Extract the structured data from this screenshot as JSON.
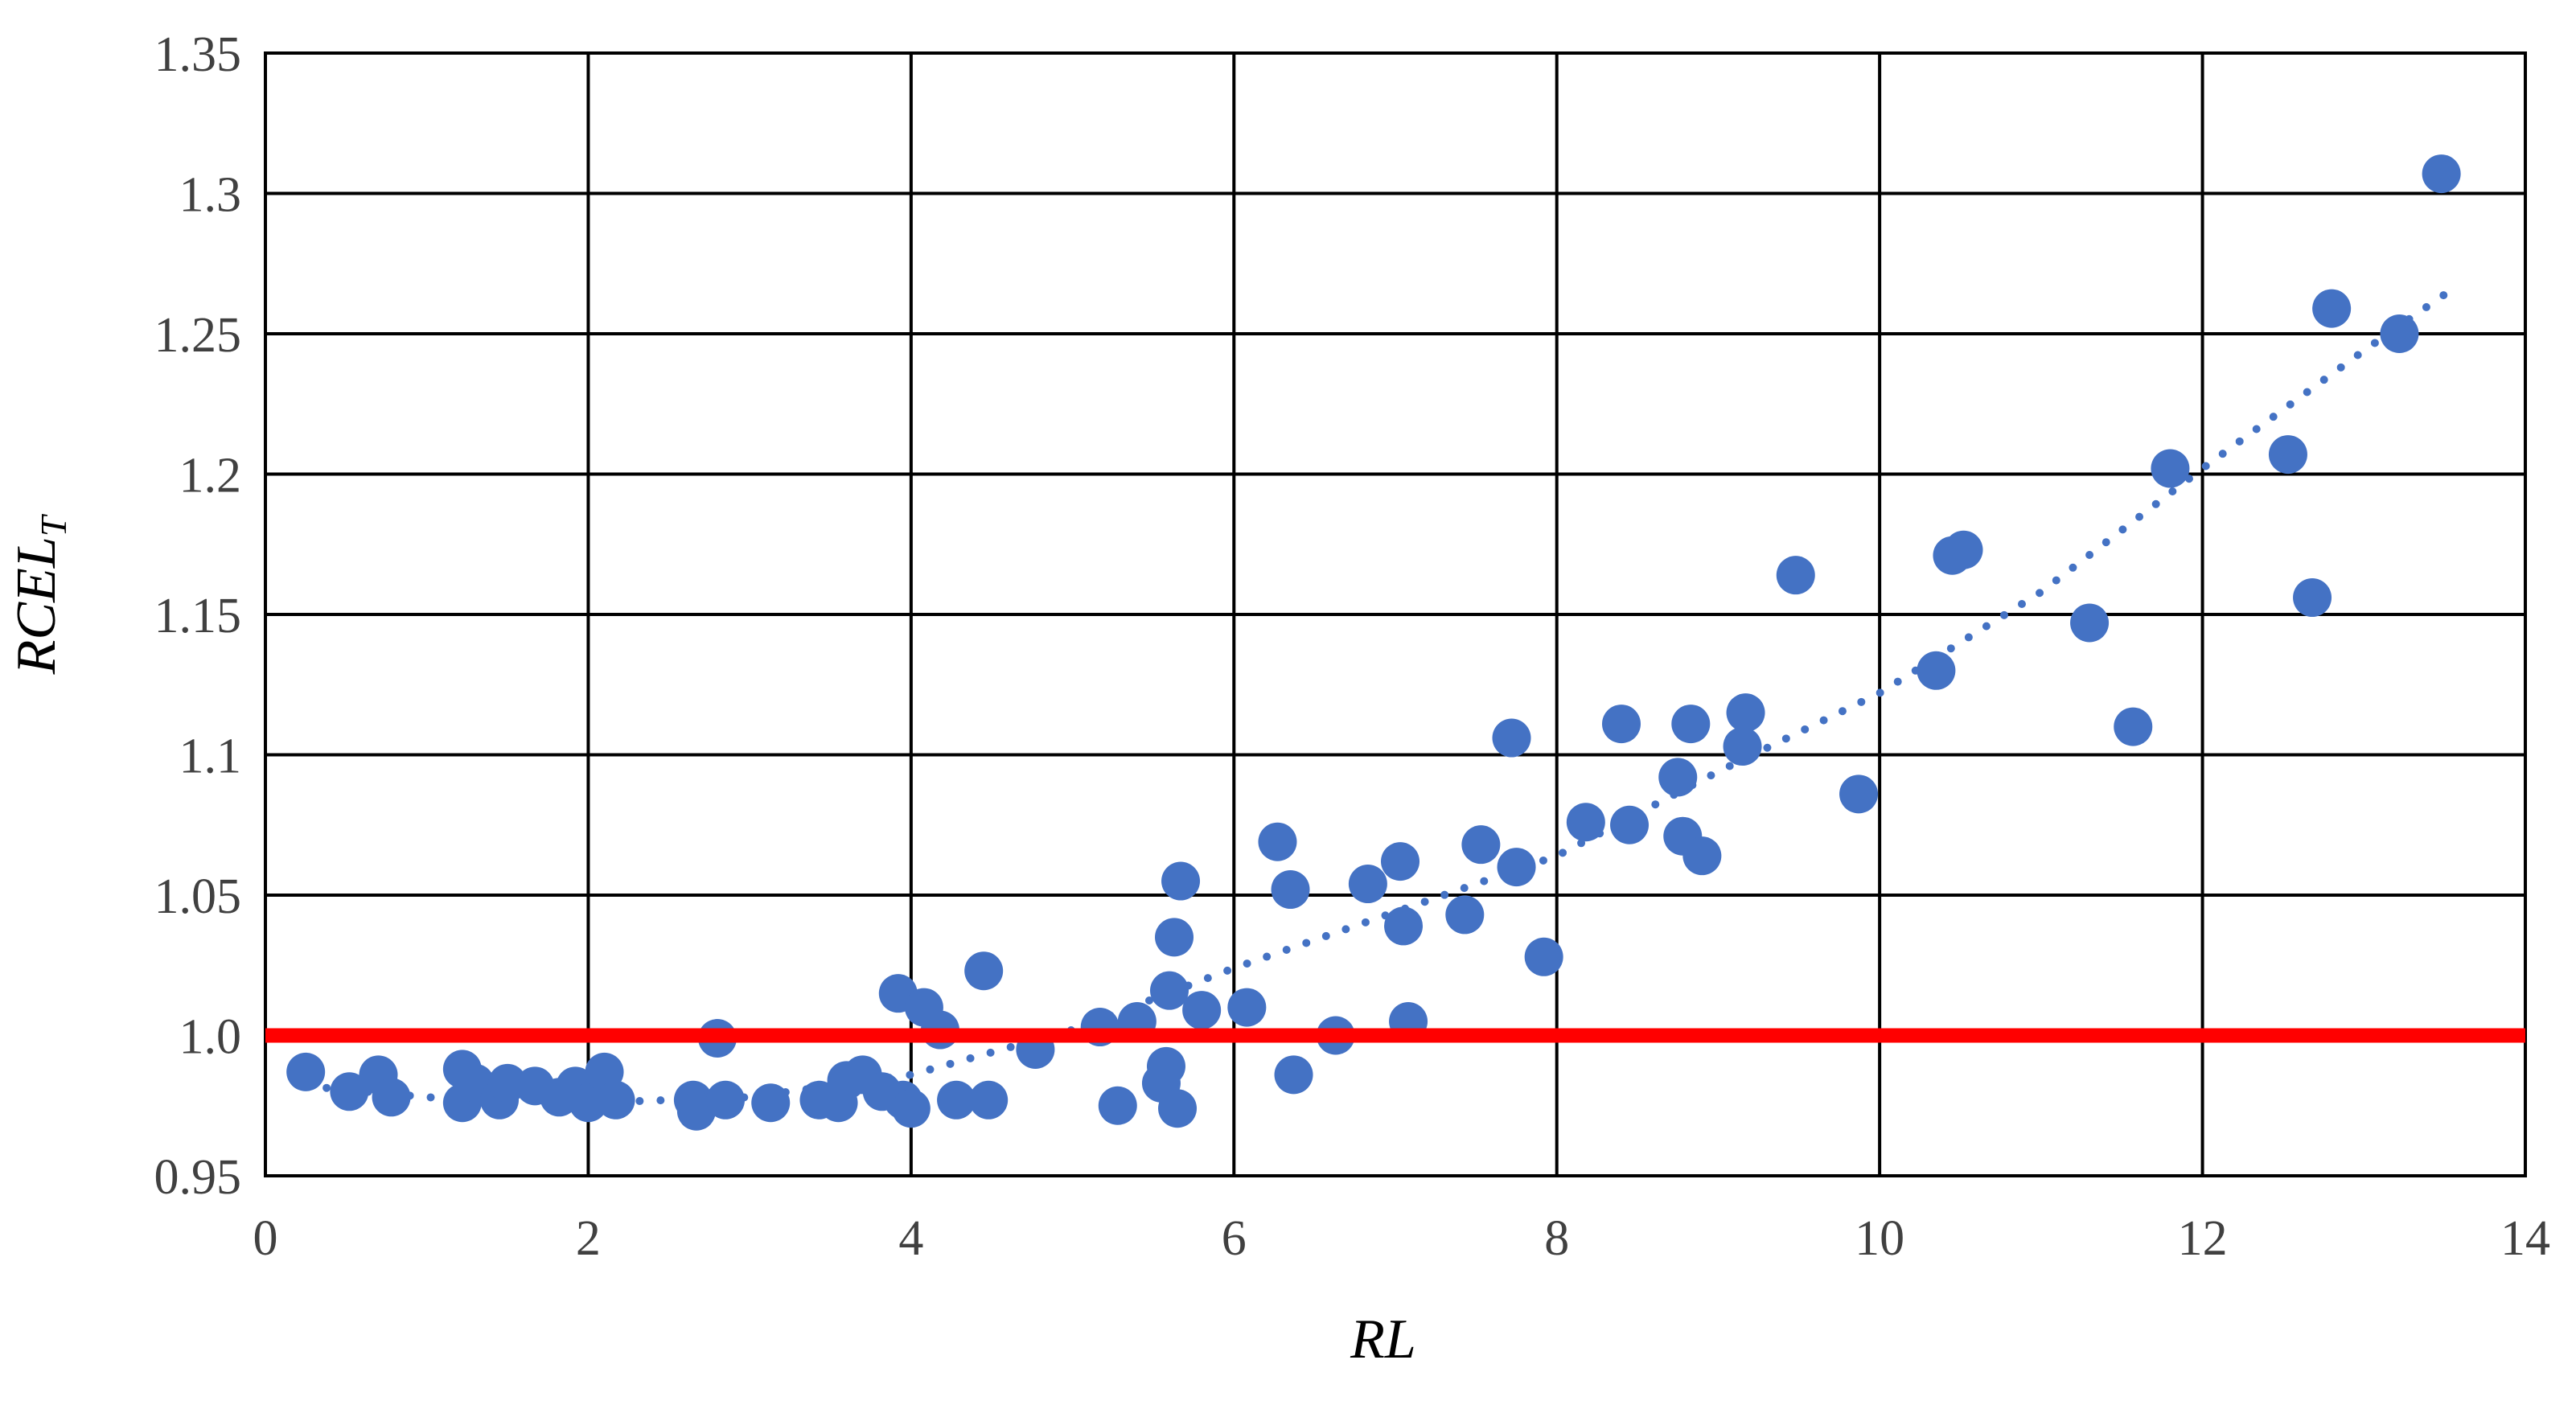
{
  "chart_data": {
    "type": "scatter",
    "title": "",
    "xlabel": "RL",
    "ylabel": {
      "main": "RCEL",
      "subscript": "T"
    },
    "xlim": [
      0,
      14
    ],
    "ylim": [
      0.95,
      1.35
    ],
    "x_ticks": [
      "0",
      "2",
      "4",
      "6",
      "8",
      "10",
      "12",
      "14"
    ],
    "y_ticks": [
      "0.95",
      "1.0",
      "1.05",
      "1.1",
      "1.15",
      "1.2",
      "1.25",
      "1.3",
      "1.35"
    ],
    "grid": true,
    "colors": {
      "points": "#4472C4",
      "trendline": "#4472C4",
      "reference_line": "#FF0000",
      "grid": "#000000"
    },
    "reference_line": {
      "y": 1.0
    },
    "trendline": {
      "style": "dotted",
      "x_range": [
        0.25,
        13.5
      ],
      "points": [
        [
          0.25,
          0.982
        ],
        [
          1,
          0.978
        ],
        [
          2,
          0.976
        ],
        [
          3,
          0.978
        ],
        [
          4,
          0.986
        ],
        [
          5,
          1.002
        ],
        [
          6,
          1.024
        ],
        [
          7,
          1.044
        ],
        [
          8,
          1.064
        ],
        [
          9,
          1.094
        ],
        [
          10,
          1.122
        ],
        [
          11,
          1.158
        ],
        [
          12,
          1.202
        ],
        [
          13,
          1.244
        ],
        [
          13.5,
          1.264
        ]
      ]
    },
    "series": [
      {
        "points": [
          [
            0.25,
            0.987
          ],
          [
            0.52,
            0.98
          ],
          [
            0.7,
            0.986
          ],
          [
            0.78,
            0.978
          ],
          [
            1.22,
            0.988
          ],
          [
            1.22,
            0.976
          ],
          [
            1.3,
            0.983
          ],
          [
            1.45,
            0.977
          ],
          [
            1.5,
            0.983
          ],
          [
            1.67,
            0.982
          ],
          [
            1.82,
            0.978
          ],
          [
            1.92,
            0.982
          ],
          [
            2.0,
            0.976
          ],
          [
            2.1,
            0.987
          ],
          [
            2.17,
            0.977
          ],
          [
            2.65,
            0.977
          ],
          [
            2.67,
            0.973
          ],
          [
            2.8,
            0.999
          ],
          [
            2.85,
            0.977
          ],
          [
            3.13,
            0.976
          ],
          [
            3.43,
            0.977
          ],
          [
            3.55,
            0.976
          ],
          [
            3.6,
            0.984
          ],
          [
            3.7,
            0.986
          ],
          [
            3.82,
            0.98
          ],
          [
            3.92,
            1.015
          ],
          [
            3.95,
            0.977
          ],
          [
            4.0,
            0.974
          ],
          [
            4.08,
            1.01
          ],
          [
            4.18,
            1.002
          ],
          [
            4.28,
            0.977
          ],
          [
            4.45,
            1.023
          ],
          [
            4.48,
            0.977
          ],
          [
            4.77,
            0.995
          ],
          [
            5.17,
            1.003
          ],
          [
            5.28,
            0.975
          ],
          [
            5.4,
            1.005
          ],
          [
            5.55,
            0.983
          ],
          [
            5.58,
            0.989
          ],
          [
            5.6,
            1.016
          ],
          [
            5.63,
            1.035
          ],
          [
            5.65,
            0.974
          ],
          [
            5.67,
            1.055
          ],
          [
            5.8,
            1.009
          ],
          [
            6.08,
            1.01
          ],
          [
            6.27,
            1.069
          ],
          [
            6.35,
            1.052
          ],
          [
            6.37,
            0.986
          ],
          [
            6.63,
            1.0
          ],
          [
            6.83,
            1.054
          ],
          [
            7.03,
            1.062
          ],
          [
            7.05,
            1.039
          ],
          [
            7.08,
            1.005
          ],
          [
            7.43,
            1.043
          ],
          [
            7.53,
            1.068
          ],
          [
            7.72,
            1.106
          ],
          [
            7.75,
            1.06
          ],
          [
            7.92,
            1.028
          ],
          [
            8.18,
            1.076
          ],
          [
            8.4,
            1.111
          ],
          [
            8.45,
            1.075
          ],
          [
            8.75,
            1.092
          ],
          [
            8.78,
            1.071
          ],
          [
            8.83,
            1.111
          ],
          [
            8.9,
            1.064
          ],
          [
            9.15,
            1.103
          ],
          [
            9.17,
            1.115
          ],
          [
            9.48,
            1.164
          ],
          [
            9.87,
            1.086
          ],
          [
            10.35,
            1.13
          ],
          [
            10.45,
            1.171
          ],
          [
            10.52,
            1.173
          ],
          [
            11.3,
            1.147
          ],
          [
            11.57,
            1.11
          ],
          [
            11.8,
            1.202
          ],
          [
            12.53,
            1.207
          ],
          [
            12.68,
            1.156
          ],
          [
            12.8,
            1.259
          ],
          [
            13.22,
            1.25
          ],
          [
            13.48,
            1.307
          ]
        ]
      }
    ]
  }
}
